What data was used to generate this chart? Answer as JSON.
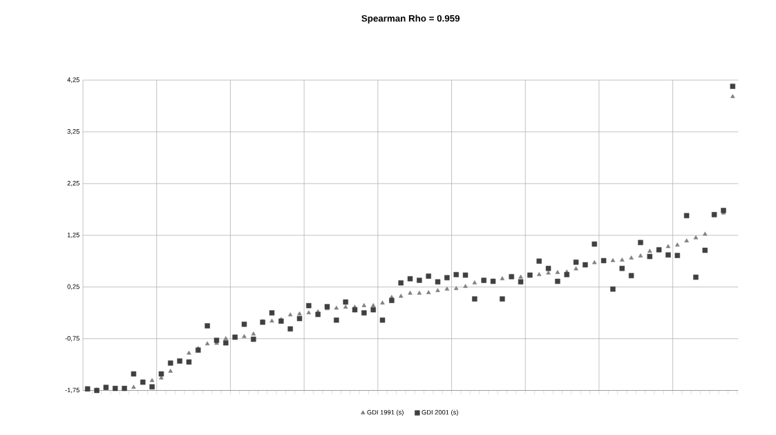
{
  "chart_data": {
    "type": "scatter",
    "title": "Spearman Rho = 0.959",
    "categories": [
      null,
      null,
      null,
      null,
      null,
      null,
      null,
      null,
      null,
      null,
      null,
      null,
      null,
      null,
      null,
      null,
      null,
      null,
      null,
      null,
      null,
      null,
      null,
      null,
      null,
      null,
      null,
      null,
      null,
      null,
      null,
      null,
      null,
      null,
      null,
      null,
      null,
      null,
      null,
      null,
      null,
      null,
      null,
      null,
      null,
      null,
      null,
      null,
      null,
      null,
      null,
      null,
      null,
      null,
      null,
      null,
      null,
      null,
      null,
      null,
      null,
      null,
      null,
      null,
      null,
      null,
      null,
      null,
      null,
      null,
      null
    ],
    "series": [
      {
        "name": "GDI 1991 (s)",
        "color": "#808080",
        "marker": "triangle",
        "values": [
          -1.72,
          -1.74,
          -1.71,
          null,
          null,
          -1.69,
          -1.58,
          -1.56,
          -1.51,
          -1.38,
          -1.2,
          -1.03,
          -0.94,
          -0.85,
          -0.84,
          -0.75,
          null,
          -0.71,
          -0.66,
          -0.42,
          -0.41,
          -0.38,
          -0.29,
          -0.27,
          -0.25,
          -0.23,
          -0.17,
          -0.16,
          -0.14,
          -0.14,
          -0.11,
          -0.11,
          -0.06,
          0.05,
          0.07,
          0.13,
          0.13,
          0.14,
          0.18,
          0.21,
          0.22,
          0.26,
          0.33,
          0.36,
          0.37,
          0.41,
          0.45,
          0.44,
          null,
          0.49,
          0.52,
          0.53,
          0.54,
          0.6,
          0.66,
          0.72,
          null,
          0.76,
          0.77,
          0.81,
          0.85,
          0.94,
          0.97,
          1.03,
          1.06,
          1.14,
          1.2,
          1.27,
          1.63,
          1.68,
          3.93
        ]
      },
      {
        "name": "GDI 2001 (s)",
        "color": "#404040",
        "marker": "square",
        "values": [
          -1.72,
          -1.75,
          -1.69,
          -1.71,
          -1.71,
          -1.43,
          -1.59,
          -1.68,
          -1.43,
          -1.22,
          -1.18,
          -1.2,
          -0.97,
          -0.5,
          -0.78,
          -0.83,
          -0.72,
          -0.47,
          -0.76,
          -0.43,
          -0.25,
          -0.41,
          -0.56,
          -0.36,
          -0.11,
          -0.28,
          -0.13,
          -0.39,
          -0.04,
          -0.19,
          -0.25,
          -0.19,
          -0.39,
          -0.01,
          0.33,
          0.41,
          0.38,
          0.46,
          0.35,
          0.43,
          0.49,
          0.48,
          0.02,
          0.38,
          0.36,
          0.02,
          0.45,
          0.35,
          0.48,
          0.75,
          0.61,
          0.36,
          0.49,
          0.73,
          0.68,
          1.08,
          0.76,
          0.21,
          0.61,
          0.47,
          1.11,
          0.84,
          0.97,
          0.87,
          0.86,
          1.63,
          0.44,
          0.96,
          1.65,
          1.73,
          4.13
        ]
      }
    ],
    "ylim": [
      -1.75,
      4.25
    ],
    "yticks": [
      {
        "value": -1.75,
        "label": "-1,75"
      },
      {
        "value": -0.75,
        "label": "-0,75"
      },
      {
        "value": 0.25,
        "label": "0,25"
      },
      {
        "value": 1.25,
        "label": "1,25"
      },
      {
        "value": 2.25,
        "label": "2,25"
      },
      {
        "value": 3.25,
        "label": "3,25"
      },
      {
        "value": 4.25,
        "label": "4,25"
      }
    ],
    "grid": true,
    "legend": "bottom"
  }
}
